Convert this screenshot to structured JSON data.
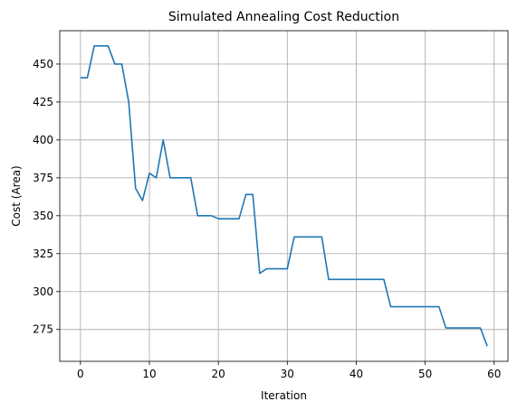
{
  "chart_data": {
    "type": "line",
    "title": "Simulated Annealing Cost Reduction",
    "xlabel": "Iteration",
    "ylabel": "Cost (Area)",
    "xlim": [
      -3,
      62
    ],
    "ylim": [
      254,
      472
    ],
    "grid": true,
    "xticks": [
      0,
      10,
      20,
      30,
      40,
      50,
      60
    ],
    "yticks": [
      275,
      300,
      325,
      350,
      375,
      400,
      425,
      450
    ],
    "series": [
      {
        "color": "#1f77b4",
        "x": [
          0,
          1,
          2,
          3,
          4,
          5,
          6,
          7,
          8,
          9,
          10,
          11,
          12,
          13,
          14,
          15,
          16,
          17,
          18,
          19,
          20,
          21,
          22,
          23,
          24,
          25,
          26,
          27,
          28,
          29,
          30,
          31,
          32,
          33,
          34,
          35,
          36,
          37,
          38,
          39,
          40,
          41,
          42,
          43,
          44,
          45,
          46,
          47,
          48,
          49,
          50,
          51,
          52,
          53,
          54,
          55,
          56,
          57,
          58,
          59
        ],
        "values": [
          441,
          441,
          462,
          462,
          462,
          450,
          450,
          425,
          368,
          360,
          378,
          375,
          400,
          375,
          375,
          375,
          375,
          350,
          350,
          350,
          348,
          348,
          348,
          348,
          364,
          364,
          312,
          315,
          315,
          315,
          315,
          336,
          336,
          336,
          336,
          336,
          308,
          308,
          308,
          308,
          308,
          308,
          308,
          308,
          308,
          290,
          290,
          290,
          290,
          290,
          290,
          290,
          290,
          276,
          276,
          276,
          276,
          276,
          276,
          264
        ]
      }
    ]
  }
}
